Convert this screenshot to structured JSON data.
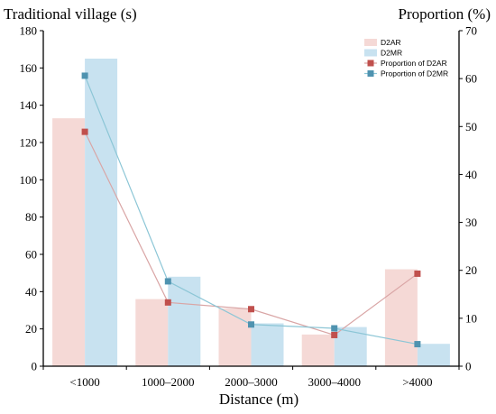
{
  "chart_data": {
    "type": "bar",
    "categories": [
      "<1000",
      "1000–2000",
      "2000–3000",
      "3000–4000",
      ">4000"
    ],
    "xlabel": "Distance (m)",
    "ylabel_left": "Traditional village (s)",
    "ylabel_right": "Proportion (%)",
    "ylim_left": [
      0,
      180
    ],
    "yticks_left": [
      0,
      20,
      40,
      60,
      80,
      100,
      120,
      140,
      160,
      180
    ],
    "ylim_right": [
      0,
      70
    ],
    "yticks_right": [
      0,
      10,
      20,
      30,
      40,
      50,
      60,
      70
    ],
    "legend_position": "top-right",
    "grid": false,
    "bar_series": [
      {
        "name": "D2AR",
        "axis": "left",
        "color": "#f5d9d6",
        "values": [
          133,
          36,
          31,
          17,
          52
        ]
      },
      {
        "name": "D2MR",
        "axis": "left",
        "color": "#c8e2f0",
        "values": [
          165,
          48,
          23,
          21,
          12
        ]
      }
    ],
    "line_series": [
      {
        "name": "Proportion of D2AR",
        "axis": "right",
        "color": "#c0504d",
        "line_color": "#d9a5a5",
        "values": [
          48.9,
          13.3,
          11.9,
          6.5,
          19.3
        ]
      },
      {
        "name": "Proportion of D2MR",
        "axis": "right",
        "color": "#4f93b0",
        "line_color": "#8cc6d6",
        "values": [
          60.6,
          17.7,
          8.7,
          7.9,
          4.6
        ]
      }
    ]
  }
}
